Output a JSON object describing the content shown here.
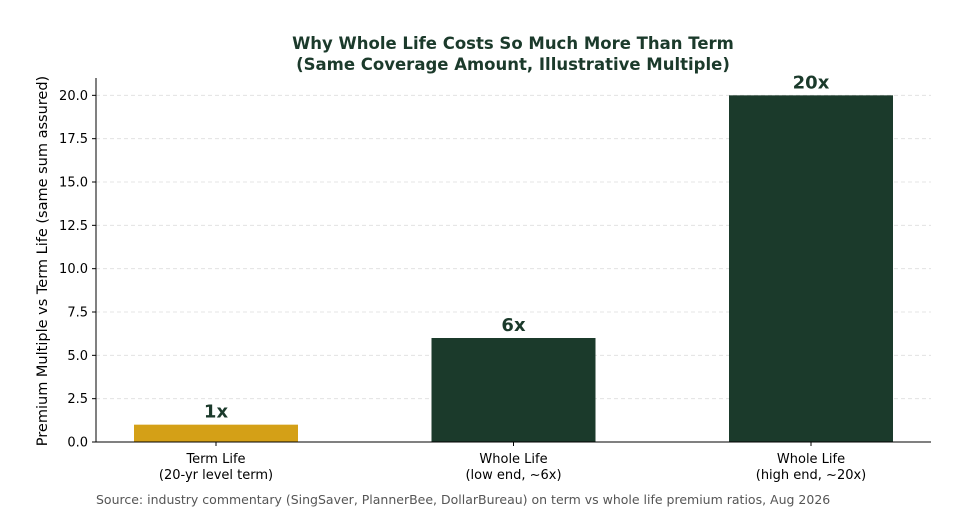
{
  "chart_data": {
    "type": "bar",
    "title_lines": [
      "Why Whole Life Costs So Much More Than Term",
      "(Same Coverage Amount, Illustrative Multiple)"
    ],
    "xlabel": "",
    "ylabel": "Premium Multiple vs Term Life (same sum assured)",
    "ylim": [
      0,
      21
    ],
    "yticks": [
      {
        "value": 0,
        "label": "0.0"
      },
      {
        "value": 2.5,
        "label": "2.5"
      },
      {
        "value": 5,
        "label": "5.0"
      },
      {
        "value": 7.5,
        "label": "7.5"
      },
      {
        "value": 10,
        "label": "10.0"
      },
      {
        "value": 12.5,
        "label": "12.5"
      },
      {
        "value": 15,
        "label": "15.0"
      },
      {
        "value": 17.5,
        "label": "17.5"
      },
      {
        "value": 20,
        "label": "20.0"
      }
    ],
    "grid": "horizontal-dashed",
    "categories": [
      {
        "lines": [
          "Term Life",
          "(20-yr level term)"
        ],
        "value": 1,
        "label": "1x",
        "color": "#d4a017"
      },
      {
        "lines": [
          "Whole Life",
          "(low end, ~6x)"
        ],
        "value": 6,
        "label": "6x",
        "color": "#1b3a2b"
      },
      {
        "lines": [
          "Whole Life",
          "(high end, ~20x)"
        ],
        "value": 20,
        "label": "20x",
        "color": "#1b3a2b"
      }
    ],
    "colors": {
      "title": "#1b3a2b",
      "bar_label": "#1b3a2b",
      "grid": "#dddddd",
      "axis": "#000000"
    },
    "source": "Source: industry commentary (SingSaver, PlannerBee, DollarBureau) on term vs whole life premium ratios, Aug 2026"
  }
}
